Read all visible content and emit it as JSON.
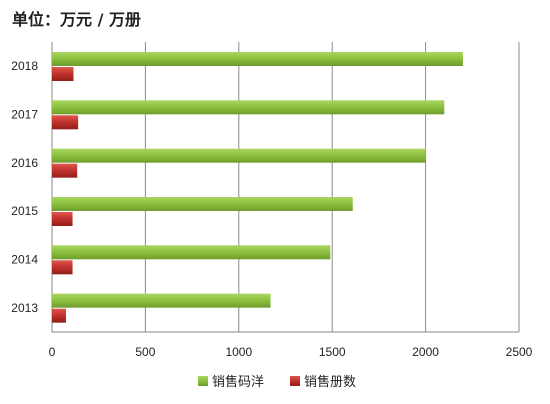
{
  "header": {
    "unit_title": "单位：万元 / 万册"
  },
  "chart_data": {
    "type": "bar",
    "orientation": "horizontal",
    "categories": [
      "2018",
      "2017",
      "2016",
      "2015",
      "2014",
      "2013"
    ],
    "series": [
      {
        "name": "销售码洋",
        "values": [
          2200,
          2100,
          2000,
          1610,
          1490,
          1170
        ],
        "color": "#8cbf3e"
      },
      {
        "name": "销售册数",
        "values": [
          115,
          140,
          135,
          110,
          110,
          75
        ],
        "color": "#c0312b"
      }
    ],
    "xlim": [
      0,
      2500
    ],
    "xticks": [
      "0",
      "500",
      "1000",
      "1500",
      "2000",
      "2500"
    ],
    "grid": true,
    "legend_position": "bottom"
  }
}
